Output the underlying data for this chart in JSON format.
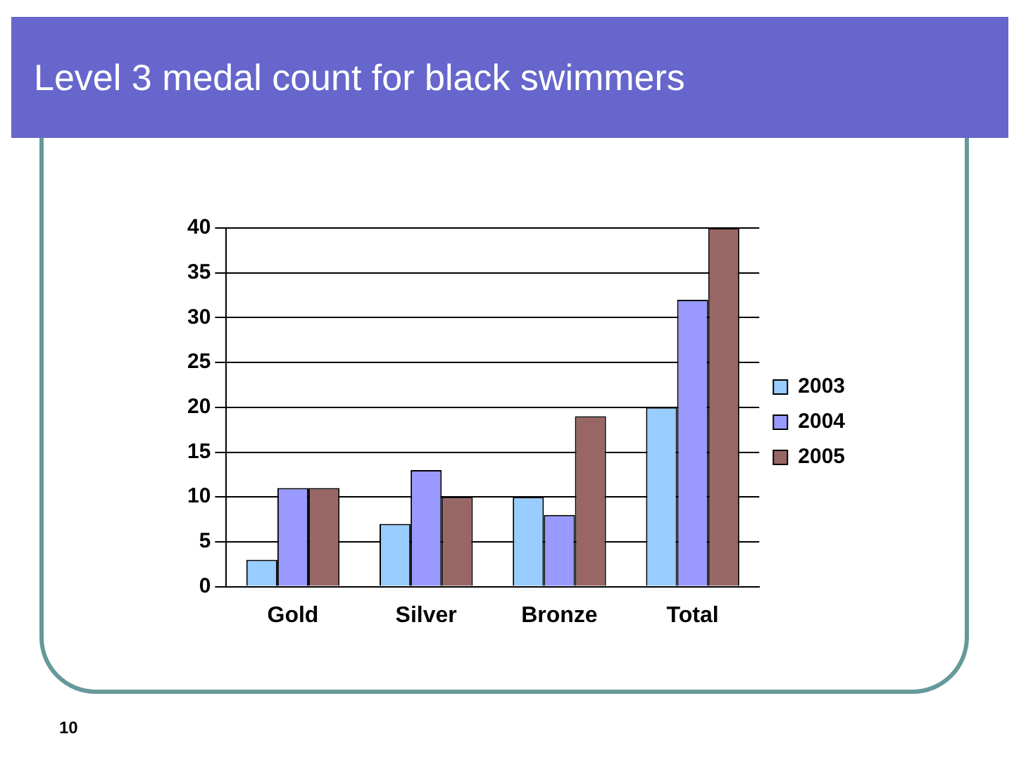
{
  "chart_data": {
    "type": "bar",
    "title": "Level 3 medal count for black swimmers",
    "categories": [
      "Gold",
      "Silver",
      "Bronze",
      "Total"
    ],
    "series": [
      {
        "name": "2003",
        "color": "#99ccff",
        "values": [
          3,
          7,
          10,
          20
        ]
      },
      {
        "name": "2004",
        "color": "#9999ff",
        "values": [
          11,
          13,
          8,
          32
        ]
      },
      {
        "name": "2005",
        "color": "#996666",
        "values": [
          11,
          10,
          19,
          40
        ]
      }
    ],
    "ylim": [
      0,
      40
    ],
    "yticks": [
      0,
      5,
      10,
      15,
      20,
      25,
      30,
      35,
      40
    ],
    "grid": "y",
    "legend": "right",
    "annotations": [
      "10"
    ]
  }
}
